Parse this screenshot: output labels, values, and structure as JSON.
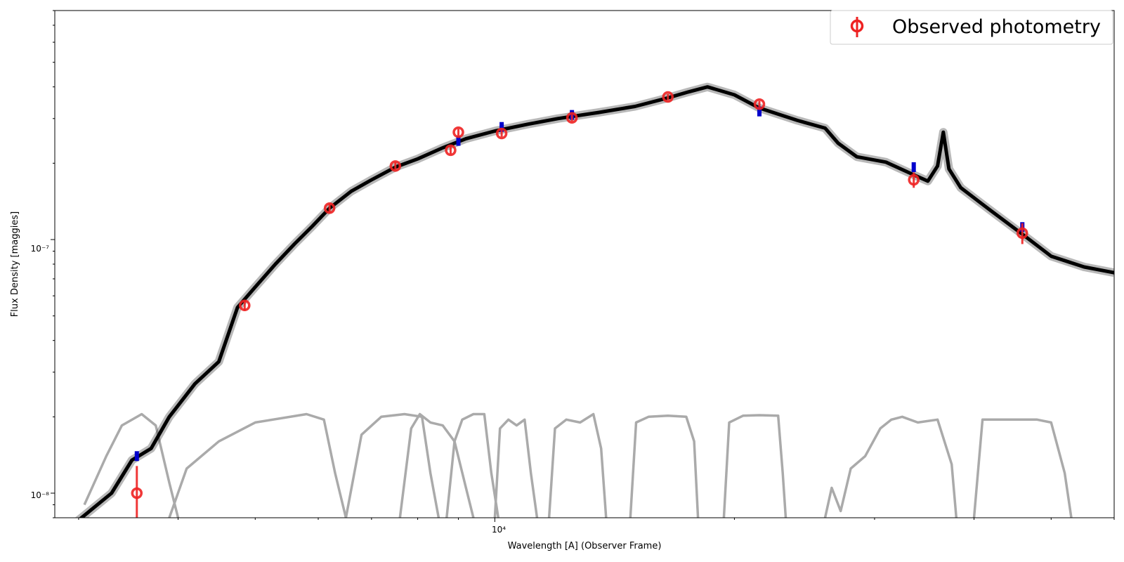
{
  "chart_data": {
    "type": "scatter",
    "title": "",
    "xlabel": "Wavelength [A] (Observer Frame)",
    "ylabel": "Flux Density [maggies]",
    "x_scale": "log",
    "y_scale": "log",
    "xlim": [
      2800,
      60000
    ],
    "ylim": [
      8e-09,
      8e-07
    ],
    "x_tick_labels": [
      "10⁴"
    ],
    "y_tick_labels": [
      "10⁻⁷",
      "10⁻⁸"
    ],
    "grid": false,
    "legend": {
      "position": "top-right",
      "entries": [
        {
          "label": "Observed photometry",
          "color": "#ee2222",
          "marker": "open-circle-errorbar"
        }
      ]
    },
    "series": [
      {
        "name": "Observed photometry",
        "color": "#ee2222",
        "points": [
          {
            "x": 3550,
            "y": 1e-08,
            "yerr": 2.8e-09
          },
          {
            "x": 4850,
            "y": 5.5e-08,
            "yerr": 2.5e-09
          },
          {
            "x": 6200,
            "y": 1.33e-07,
            "yerr": 5e-09
          },
          {
            "x": 7500,
            "y": 1.95e-07,
            "yerr": 7e-09
          },
          {
            "x": 8800,
            "y": 2.25e-07,
            "yerr": 8e-09
          },
          {
            "x": 9000,
            "y": 2.65e-07,
            "yerr": 8e-09
          },
          {
            "x": 10200,
            "y": 2.62e-07,
            "yerr": 8e-09
          },
          {
            "x": 12500,
            "y": 3.02e-07,
            "yerr": 9e-09
          },
          {
            "x": 16500,
            "y": 3.65e-07,
            "yerr": 1e-08
          },
          {
            "x": 21500,
            "y": 3.42e-07,
            "yerr": 1e-08
          },
          {
            "x": 33600,
            "y": 1.72e-07,
            "yerr": 1.2e-08
          },
          {
            "x": 46000,
            "y": 1.06e-07,
            "yerr": 1e-08
          }
        ]
      },
      {
        "name": "",
        "color": "#0000cc",
        "points": [
          {
            "x": 3550,
            "y": 1.4e-08
          },
          {
            "x": 9000,
            "y": 2.45e-07
          },
          {
            "x": 10200,
            "y": 2.78e-07
          },
          {
            "x": 12500,
            "y": 3.1e-07
          },
          {
            "x": 21500,
            "y": 3.2e-07
          },
          {
            "x": 33600,
            "y": 1.93e-07
          },
          {
            "x": 46000,
            "y": 1.12e-07
          }
        ]
      }
    ],
    "model_spectrum": {
      "color": "#000000",
      "points": [
        [
          2950,
          7.5e-09
        ],
        [
          3300,
          1e-08
        ],
        [
          3500,
          1.35e-08
        ],
        [
          3700,
          1.5e-08
        ],
        [
          3900,
          2e-08
        ],
        [
          4200,
          2.7e-08
        ],
        [
          4500,
          3.3e-08
        ],
        [
          4750,
          5.4e-08
        ],
        [
          5000,
          6.5e-08
        ],
        [
          5300,
          8e-08
        ],
        [
          5600,
          9.6e-08
        ],
        [
          5900,
          1.13e-07
        ],
        [
          6200,
          1.33e-07
        ],
        [
          6600,
          1.55e-07
        ],
        [
          7000,
          1.72e-07
        ],
        [
          7500,
          1.93e-07
        ],
        [
          8000,
          2.08e-07
        ],
        [
          8600,
          2.3e-07
        ],
        [
          9200,
          2.5e-07
        ],
        [
          10000,
          2.68e-07
        ],
        [
          11000,
          2.85e-07
        ],
        [
          12000,
          3e-07
        ],
        [
          13500,
          3.17e-07
        ],
        [
          15000,
          3.35e-07
        ],
        [
          16500,
          3.62e-07
        ],
        [
          17500,
          3.82e-07
        ],
        [
          18500,
          4e-07
        ],
        [
          20000,
          3.72e-07
        ],
        [
          21500,
          3.3e-07
        ],
        [
          24000,
          2.95e-07
        ],
        [
          26000,
          2.75e-07
        ],
        [
          27000,
          2.4e-07
        ],
        [
          28500,
          2.12e-07
        ],
        [
          31000,
          2.02e-07
        ],
        [
          33600,
          1.8e-07
        ],
        [
          35000,
          1.7e-07
        ],
        [
          36000,
          1.95e-07
        ],
        [
          36600,
          2.65e-07
        ],
        [
          37200,
          1.9e-07
        ],
        [
          38500,
          1.6e-07
        ],
        [
          42000,
          1.3e-07
        ],
        [
          46000,
          1.05e-07
        ],
        [
          50000,
          8.6e-08
        ],
        [
          55000,
          7.8e-08
        ],
        [
          60000,
          7.4e-08
        ]
      ]
    },
    "filter_curves": {
      "color": "#aaaaaa",
      "curves": [
        [
          [
            3050,
            9e-09
          ],
          [
            3250,
            1.4e-08
          ],
          [
            3400,
            1.85e-08
          ],
          [
            3600,
            2.05e-08
          ],
          [
            3750,
            1.85e-08
          ],
          [
            3900,
            1.1e-08
          ],
          [
            4000,
            8e-09
          ]
        ],
        [
          [
            3900,
            8e-09
          ],
          [
            4100,
            1.25e-08
          ],
          [
            4500,
            1.6e-08
          ],
          [
            5000,
            1.9e-08
          ],
          [
            5800,
            2.05e-08
          ],
          [
            6100,
            1.95e-08
          ],
          [
            6300,
            1.2e-08
          ],
          [
            6500,
            8e-09
          ]
        ],
        [
          [
            6500,
            8e-09
          ],
          [
            6800,
            1.7e-08
          ],
          [
            7200,
            2e-08
          ],
          [
            7700,
            2.05e-08
          ],
          [
            8100,
            2e-08
          ],
          [
            8300,
            1.2e-08
          ],
          [
            8500,
            8e-09
          ]
        ],
        [
          [
            7600,
            8e-09
          ],
          [
            7850,
            1.8e-08
          ],
          [
            8050,
            2.05e-08
          ],
          [
            8300,
            1.9e-08
          ],
          [
            8600,
            1.85e-08
          ],
          [
            8900,
            1.6e-08
          ],
          [
            9200,
            1.05e-08
          ],
          [
            9400,
            8e-09
          ]
        ],
        [
          [
            8700,
            8e-09
          ],
          [
            8900,
            1.6e-08
          ],
          [
            9100,
            1.95e-08
          ],
          [
            9400,
            2.05e-08
          ],
          [
            9700,
            2.05e-08
          ],
          [
            9900,
            1.2e-08
          ],
          [
            10100,
            8e-09
          ]
        ],
        [
          [
            10000,
            8e-09
          ],
          [
            10150,
            1.8e-08
          ],
          [
            10400,
            1.95e-08
          ],
          [
            10650,
            1.85e-08
          ],
          [
            10900,
            1.95e-08
          ],
          [
            11100,
            1.2e-08
          ],
          [
            11300,
            8e-09
          ]
        ],
        [
          [
            11700,
            8e-09
          ],
          [
            11900,
            1.8e-08
          ],
          [
            12300,
            1.95e-08
          ],
          [
            12800,
            1.9e-08
          ],
          [
            13300,
            2.05e-08
          ],
          [
            13600,
            1.5e-08
          ],
          [
            13800,
            8e-09
          ]
        ],
        [
          [
            14800,
            8e-09
          ],
          [
            15050,
            1.9e-08
          ],
          [
            15600,
            2e-08
          ],
          [
            16500,
            2.02e-08
          ],
          [
            17400,
            2e-08
          ],
          [
            17800,
            1.6e-08
          ],
          [
            18000,
            8e-09
          ]
        ],
        [
          [
            19400,
            8e-09
          ],
          [
            19700,
            1.9e-08
          ],
          [
            20500,
            2.02e-08
          ],
          [
            21500,
            2.03e-08
          ],
          [
            22700,
            2.02e-08
          ],
          [
            23000,
            1.2e-08
          ],
          [
            23200,
            8e-09
          ]
        ],
        [
          [
            26000,
            8e-09
          ],
          [
            26500,
            1.05e-08
          ],
          [
            27200,
            8.5e-09
          ],
          [
            28000,
            1.25e-08
          ],
          [
            29200,
            1.4e-08
          ],
          [
            30500,
            1.8e-08
          ],
          [
            31500,
            1.95e-08
          ],
          [
            32500,
            2e-08
          ],
          [
            34000,
            1.9e-08
          ],
          [
            36000,
            1.95e-08
          ],
          [
            37500,
            1.3e-08
          ],
          [
            38000,
            8e-09
          ]
        ],
        [
          [
            40000,
            8e-09
          ],
          [
            41000,
            1.95e-08
          ],
          [
            44000,
            1.95e-08
          ],
          [
            48000,
            1.95e-08
          ],
          [
            50000,
            1.9e-08
          ],
          [
            52000,
            1.2e-08
          ],
          [
            53000,
            8e-09
          ]
        ]
      ]
    }
  }
}
